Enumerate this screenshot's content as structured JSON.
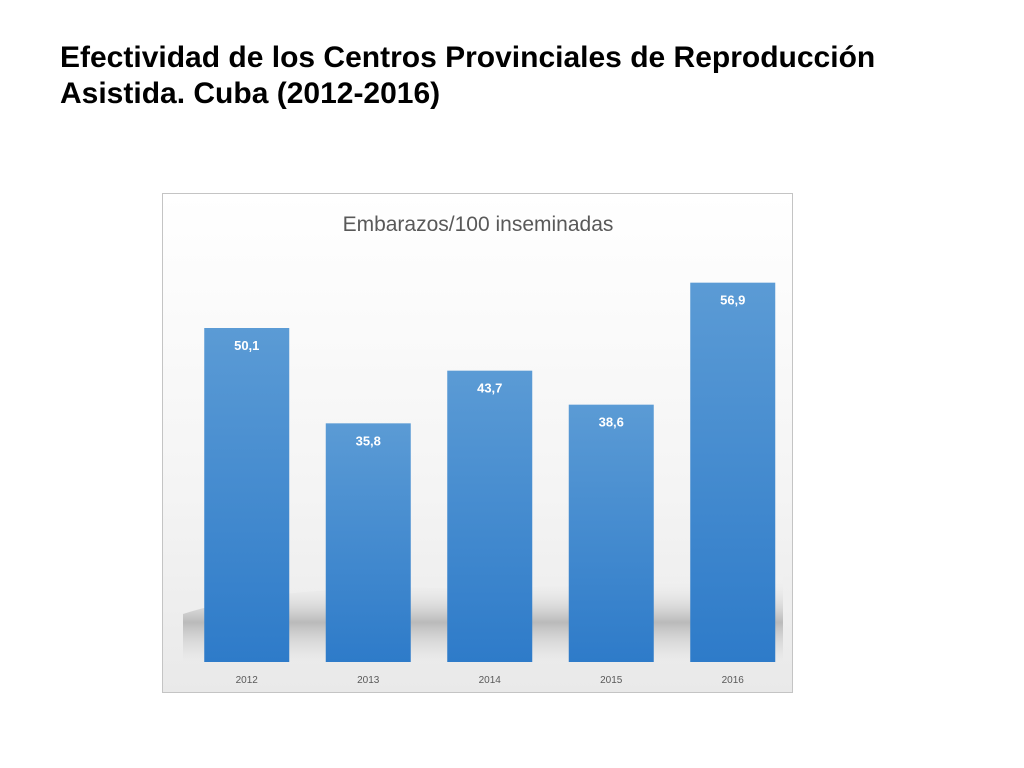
{
  "slide": {
    "title_line1": "Efectividad de los Centros Provinciales de Reproducción",
    "title_line2": "Asistida. Cuba (2012-2016)"
  },
  "chart_data": {
    "type": "bar",
    "title": "Embarazos/100 inseminadas",
    "categories": [
      "2012",
      "2013",
      "2014",
      "2015",
      "2016"
    ],
    "values": [
      50.1,
      35.8,
      43.7,
      38.6,
      56.9
    ],
    "data_labels": [
      "50,1",
      "35,8",
      "43,7",
      "38,6",
      "56,9"
    ],
    "xlabel": "",
    "ylabel": "",
    "ylim": [
      0,
      60
    ],
    "grid": false,
    "legend": "none",
    "colors": {
      "bar_top": "#5b9bd5",
      "bar_bottom": "#2e7bc9"
    }
  }
}
